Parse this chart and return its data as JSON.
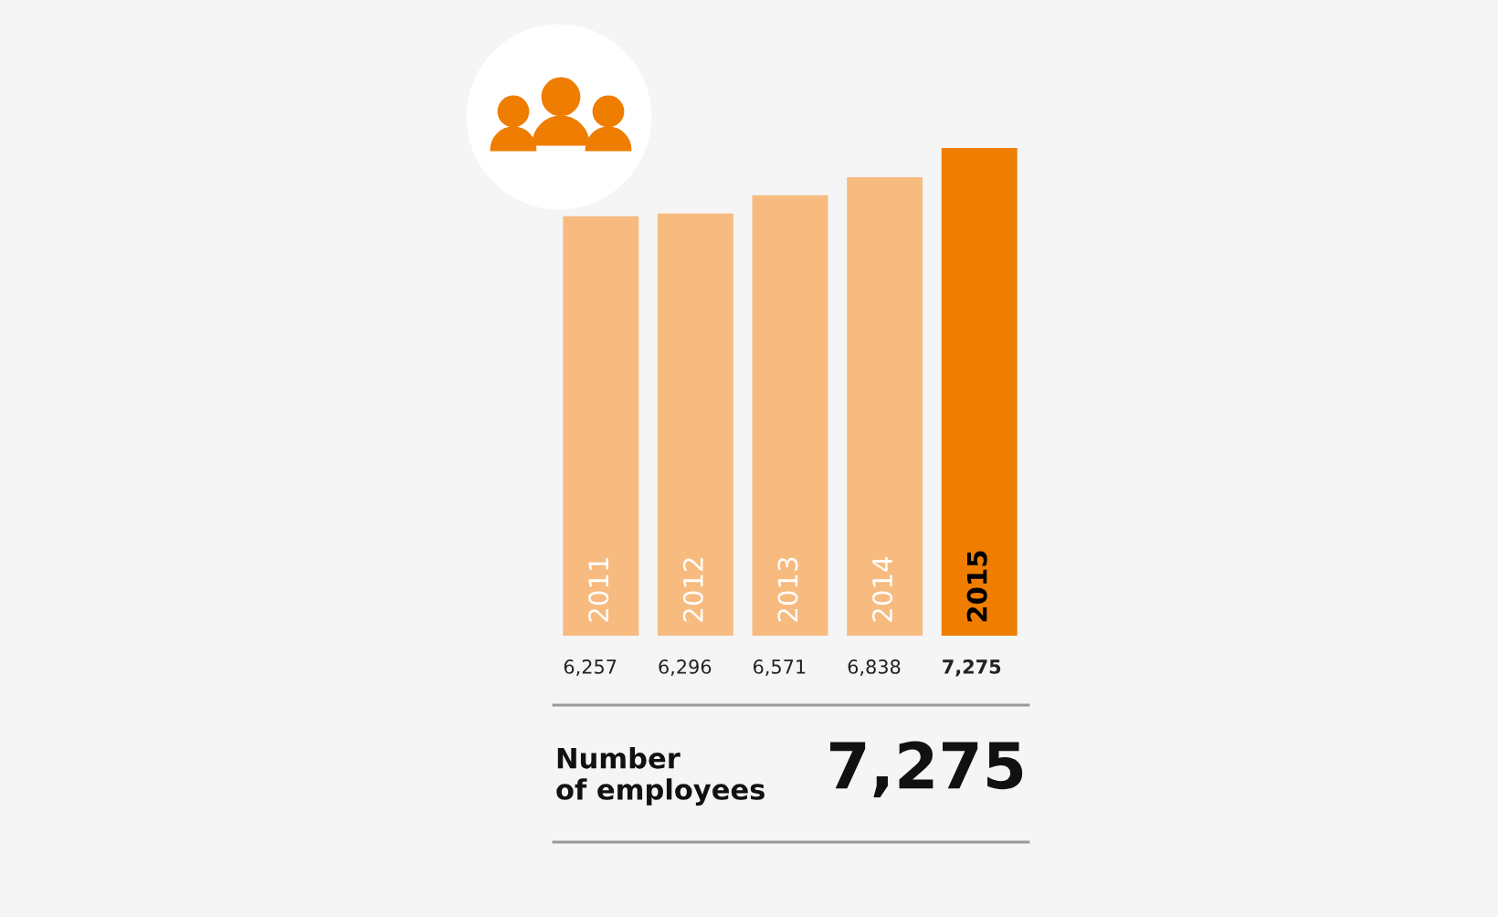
{
  "chart_data": {
    "type": "bar",
    "categories": [
      "2011",
      "2012",
      "2013",
      "2014",
      "2015"
    ],
    "values": [
      6257,
      6296,
      6571,
      6838,
      7275
    ],
    "colors": [
      "#f7bb80",
      "#f7bb80",
      "#f7bb80",
      "#f7bb80",
      "#ef7d00"
    ],
    "data_labels": true,
    "value_labels": [
      "6,257",
      "6,296",
      "6,571",
      "6,838",
      "7,275"
    ],
    "annotations": [
      "Number\nof employees",
      "7,275"
    ]
  }
}
